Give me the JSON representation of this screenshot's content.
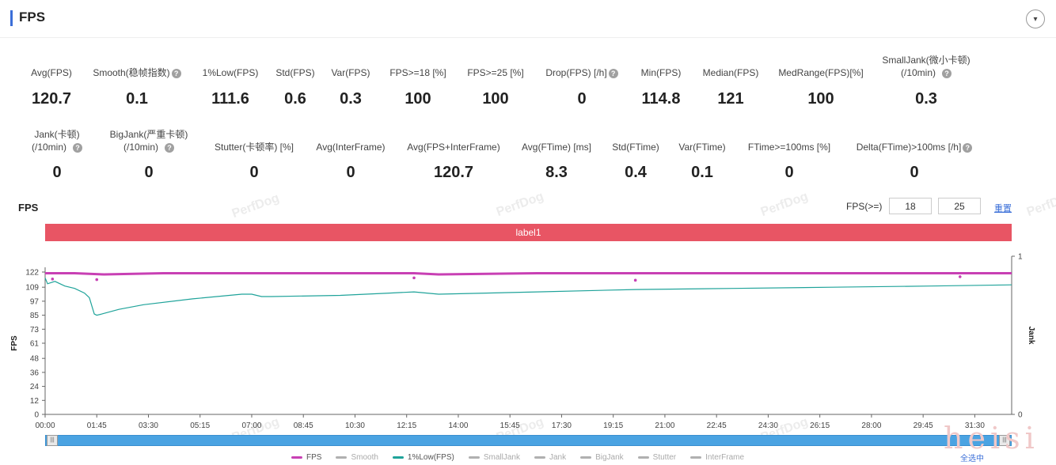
{
  "header": {
    "title": "FPS",
    "collapse_icon": "▾"
  },
  "metrics_row1": [
    {
      "label": "Avg(FPS)",
      "value": "120.7",
      "help": false
    },
    {
      "label": "Smooth(稳帧指数)",
      "value": "0.1",
      "help": true
    },
    {
      "label": "1%Low(FPS)",
      "value": "111.6",
      "help": false
    },
    {
      "label": "Std(FPS)",
      "value": "0.6",
      "help": false
    },
    {
      "label": "Var(FPS)",
      "value": "0.3",
      "help": false
    },
    {
      "label": "FPS>=18 [%]",
      "value": "100",
      "help": false
    },
    {
      "label": "FPS>=25 [%]",
      "value": "100",
      "help": false
    },
    {
      "label": "Drop(FPS) [/h]",
      "value": "0",
      "help": true
    },
    {
      "label": "Min(FPS)",
      "value": "114.8",
      "help": false
    },
    {
      "label": "Median(FPS)",
      "value": "121",
      "help": false
    },
    {
      "label": "MedRange(FPS)[%]",
      "value": "100",
      "help": false
    },
    {
      "label": "SmallJank(微小卡顿)",
      "label2": "(/10min)",
      "value": "0.3",
      "help": true
    }
  ],
  "metrics_row2": [
    {
      "label": "Jank(卡顿)",
      "label2": "(/10min)",
      "value": "0",
      "help": true
    },
    {
      "label": "BigJank(严重卡顿)",
      "label2": "(/10min)",
      "value": "0",
      "help": true
    },
    {
      "label": "Stutter(卡顿率) [%]",
      "value": "0",
      "help": false
    },
    {
      "label": "Avg(InterFrame)",
      "value": "0",
      "help": false
    },
    {
      "label": "Avg(FPS+InterFrame)",
      "value": "120.7",
      "help": false
    },
    {
      "label": "Avg(FTime) [ms]",
      "value": "8.3",
      "help": false
    },
    {
      "label": "Std(FTime)",
      "value": "0.4",
      "help": false
    },
    {
      "label": "Var(FTime)",
      "value": "0.1",
      "help": false
    },
    {
      "label": "FTime>=100ms [%]",
      "value": "0",
      "help": false
    },
    {
      "label": "Delta(FTime)>100ms [/h]",
      "value": "0",
      "help": true
    }
  ],
  "watermark": "PerfDog",
  "chart_controls": {
    "title": "FPS",
    "threshold_label": "FPS(>=)",
    "threshold1": "18",
    "threshold2": "25",
    "reset_label": "重置"
  },
  "label_band": "label1",
  "legend": [
    {
      "name": "FPS",
      "color": "#c840b4",
      "active": true
    },
    {
      "name": "Smooth",
      "color": "#b0b0b0",
      "active": false
    },
    {
      "name": "1%Low(FPS)",
      "color": "#1fa39a",
      "active": true
    },
    {
      "name": "SmallJank",
      "color": "#b0b0b0",
      "active": false
    },
    {
      "name": "Jank",
      "color": "#b0b0b0",
      "active": false
    },
    {
      "name": "BigJank",
      "color": "#b0b0b0",
      "active": false
    },
    {
      "name": "Stutter",
      "color": "#b0b0b0",
      "active": false
    },
    {
      "name": "InterFrame",
      "color": "#b0b0b0",
      "active": false
    }
  ],
  "select_all_label": "全选中",
  "corner_text": "heisi",
  "chart_data": {
    "type": "line",
    "ylabel": "FPS",
    "y2label": "Jank",
    "ylim": [
      0,
      122
    ],
    "y2lim": [
      0,
      1
    ],
    "y_ticks": [
      "0",
      "12",
      "24",
      "36",
      "48",
      "61",
      "73",
      "85",
      "97",
      "109",
      "122"
    ],
    "y2_ticks": [
      "0",
      "1"
    ],
    "x_ticks": [
      "00:00",
      "01:45",
      "03:30",
      "05:15",
      "07:00",
      "08:45",
      "10:30",
      "12:15",
      "14:00",
      "15:45",
      "17:30",
      "19:15",
      "21:00",
      "22:45",
      "24:30",
      "26:15",
      "28:00",
      "29:45",
      "31:30"
    ],
    "x_range_seconds": [
      0,
      1965
    ],
    "series": [
      {
        "name": "FPS",
        "color": "#c840b4",
        "x_seconds": [
          0,
          60,
          120,
          240,
          420,
          600,
          750,
          800,
          1000,
          1200,
          1400,
          1600,
          1800,
          1965
        ],
        "values": [
          121,
          121,
          120,
          121,
          121,
          121,
          121,
          120,
          121,
          121,
          121,
          121,
          121,
          121
        ],
        "dips": [
          [
            15,
            116
          ],
          [
            105,
            115.5
          ],
          [
            750,
            117
          ],
          [
            1200,
            115
          ],
          [
            1860,
            118
          ]
        ]
      },
      {
        "name": "1%Low(FPS)",
        "color": "#1fa39a",
        "x_seconds": [
          0,
          5,
          20,
          40,
          60,
          80,
          90,
          95,
          100,
          105,
          115,
          150,
          200,
          300,
          400,
          420,
          440,
          460,
          600,
          700,
          750,
          800,
          1000,
          1200,
          1400,
          1600,
          1800,
          1965
        ],
        "values": [
          117,
          112,
          114,
          110,
          108,
          104,
          100,
          93,
          86,
          85,
          86,
          90,
          94,
          99,
          103,
          103,
          101,
          101,
          102,
          104,
          105,
          103,
          105,
          107,
          108,
          109,
          110,
          111
        ]
      }
    ]
  }
}
